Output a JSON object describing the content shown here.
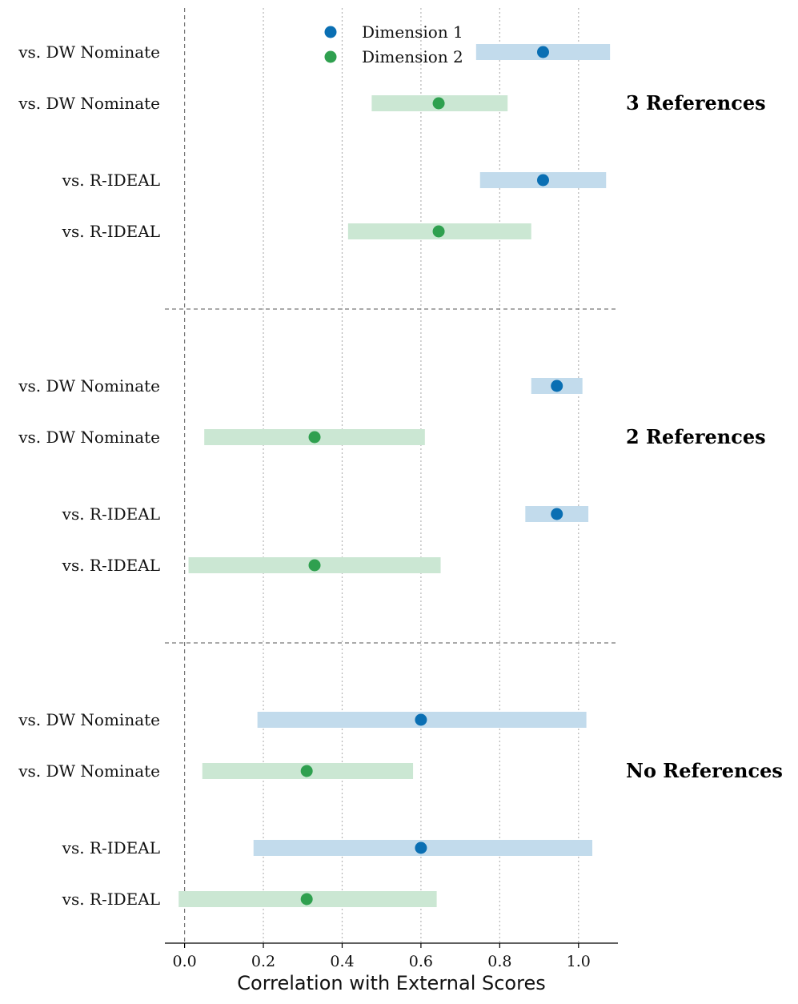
{
  "chart_data": {
    "type": "scatter",
    "xlabel": "Correlation with External Scores",
    "xlim": [
      -0.05,
      1.1
    ],
    "xticks": [
      "0.0",
      "0.2",
      "0.4",
      "0.6",
      "0.8",
      "1.0"
    ],
    "xtick_values": [
      0.0,
      0.2,
      0.4,
      0.6,
      0.8,
      1.0
    ],
    "legend": [
      {
        "name": "Dimension 1",
        "color": "#0a6fb3"
      },
      {
        "name": "Dimension 2",
        "color": "#2fa04f"
      }
    ],
    "legend_position": "top-center",
    "groups": [
      {
        "title": "3 References",
        "rows": [
          {
            "label": "vs. DW Nominate",
            "series": "Dimension 1",
            "value": 0.91,
            "low": 0.74,
            "high": 1.08
          },
          {
            "label": "vs. DW Nominate",
            "series": "Dimension 2",
            "value": 0.645,
            "low": 0.475,
            "high": 0.82
          },
          {
            "label": "vs. R-IDEAL",
            "series": "Dimension 1",
            "value": 0.91,
            "low": 0.75,
            "high": 1.07
          },
          {
            "label": "vs. R-IDEAL",
            "series": "Dimension 2",
            "value": 0.645,
            "low": 0.415,
            "high": 0.88
          }
        ]
      },
      {
        "title": "2 References",
        "rows": [
          {
            "label": "vs. DW Nominate",
            "series": "Dimension 1",
            "value": 0.945,
            "low": 0.88,
            "high": 1.01
          },
          {
            "label": "vs. DW Nominate",
            "series": "Dimension 2",
            "value": 0.33,
            "low": 0.05,
            "high": 0.61
          },
          {
            "label": "vs. R-IDEAL",
            "series": "Dimension 1",
            "value": 0.945,
            "low": 0.865,
            "high": 1.025
          },
          {
            "label": "vs. R-IDEAL",
            "series": "Dimension 2",
            "value": 0.33,
            "low": 0.01,
            "high": 0.65
          }
        ]
      },
      {
        "title": "No References",
        "rows": [
          {
            "label": "vs. DW Nominate",
            "series": "Dimension 1",
            "value": 0.6,
            "low": 0.185,
            "high": 1.02
          },
          {
            "label": "vs. DW Nominate",
            "series": "Dimension 2",
            "value": 0.31,
            "low": 0.045,
            "high": 0.58
          },
          {
            "label": "vs. R-IDEAL",
            "series": "Dimension 1",
            "value": 0.6,
            "low": 0.175,
            "high": 1.035
          },
          {
            "label": "vs. R-IDEAL",
            "series": "Dimension 2",
            "value": 0.31,
            "low": -0.015,
            "high": 0.64
          }
        ]
      }
    ]
  }
}
